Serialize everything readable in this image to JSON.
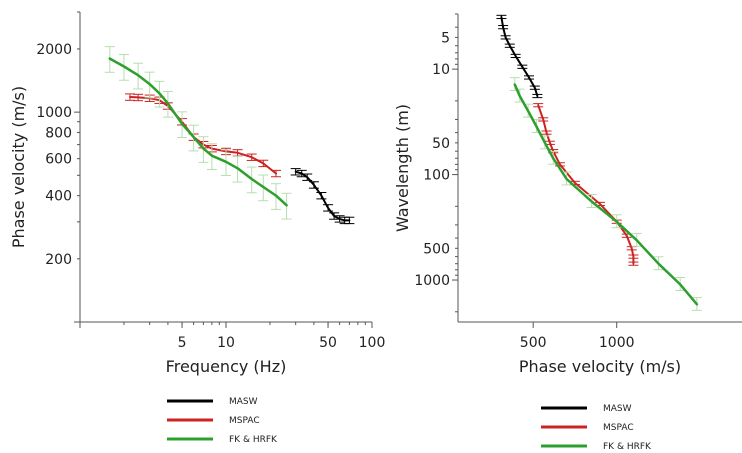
{
  "colors": {
    "MASW": "#000000",
    "MSPAC": "#cc2222",
    "FK & HRFK": "#2ca02c",
    "errorbar": "#b8ddb0",
    "axis": "#555555"
  },
  "chart_data": [
    {
      "type": "line",
      "xscale": "log",
      "yscale": "log",
      "xlabel": "Frequency (Hz)",
      "ylabel": "Phase velocity (m/s)",
      "xlim": [
        1,
        100
      ],
      "ylim": [
        100,
        3000
      ],
      "xticks": [
        5,
        10,
        50,
        100
      ],
      "yticks": [
        200,
        400,
        600,
        800,
        1000,
        2000
      ],
      "legend_position": "bottom",
      "series": [
        {
          "name": "MASW",
          "x": [
            30,
            33,
            36,
            40,
            45,
            50,
            55,
            60,
            65,
            70
          ],
          "y": [
            520,
            510,
            490,
            450,
            400,
            350,
            320,
            310,
            305,
            305
          ]
        },
        {
          "name": "MSPAC",
          "x": [
            2.2,
            2.5,
            3,
            3.5,
            4,
            5,
            6,
            7,
            8,
            10,
            12,
            15,
            18,
            22
          ],
          "y": [
            1180,
            1175,
            1165,
            1140,
            1070,
            900,
            760,
            700,
            670,
            650,
            640,
            610,
            570,
            510
          ]
        },
        {
          "name": "FK & HRFK",
          "x": [
            1.6,
            2,
            2.5,
            3,
            3.5,
            4,
            5,
            6,
            7,
            8,
            10,
            12,
            15,
            18,
            22,
            26
          ],
          "y": [
            1800,
            1650,
            1500,
            1360,
            1230,
            1100,
            880,
            760,
            670,
            620,
            580,
            540,
            480,
            440,
            400,
            360
          ]
        }
      ]
    },
    {
      "type": "line",
      "xscale": "linear",
      "yscale": "log",
      "yreversed": true,
      "xlabel": "Phase velocity (m/s)",
      "ylabel": "Wavelength (m)",
      "xlim": [
        50,
        1750
      ],
      "ylim": [
        3,
        2500
      ],
      "xticks": [
        500,
        1000
      ],
      "yticks": [
        5,
        10,
        50,
        100,
        500,
        1000
      ],
      "legend_position": "bottom",
      "series": [
        {
          "name": "MASW",
          "x": [
            310,
            320,
            335,
            360,
            395,
            435,
            475,
            510,
            525
          ],
          "y": [
            3.2,
            4,
            5,
            6,
            7.5,
            9.5,
            12,
            15,
            18
          ]
        },
        {
          "name": "MSPAC",
          "x": [
            530,
            560,
            580,
            600,
            620,
            660,
            750,
            900,
            1000,
            1060,
            1090,
            1100,
            1100
          ],
          "y": [
            22,
            30,
            40,
            50,
            60,
            80,
            120,
            190,
            280,
            380,
            500,
            600,
            700
          ]
        },
        {
          "name": "FK & HRFK",
          "x": [
            390,
            420,
            470,
            520,
            570,
            620,
            700,
            850,
            1000,
            1120,
            1250,
            1380,
            1480
          ],
          "y": [
            14,
            18,
            25,
            35,
            50,
            70,
            110,
            180,
            280,
            420,
            700,
            1100,
            1700
          ]
        }
      ]
    }
  ]
}
